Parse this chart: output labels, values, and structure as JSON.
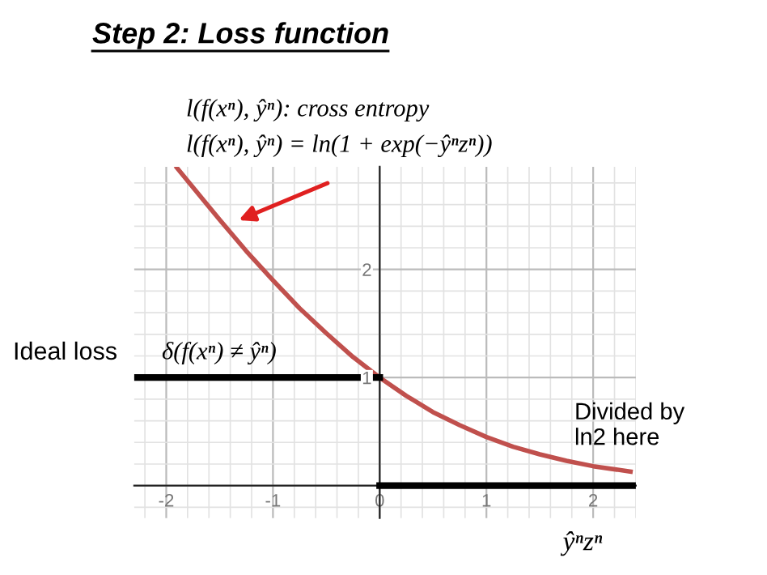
{
  "chart_data": {
    "type": "line",
    "title": "Step 2: Loss function",
    "xlabel": "ŷⁿzⁿ",
    "series": [
      {
        "color": "#c0504d",
        "x": [
          -1.9,
          -1.75,
          -1.5,
          -1.25,
          -1,
          -0.75,
          -0.5,
          -0.25,
          0,
          0.25,
          0.5,
          0.75,
          1,
          1.25,
          1.5,
          1.75,
          2,
          2.35
        ],
        "values": [
          2.94,
          2.76,
          2.46,
          2.17,
          1.9,
          1.64,
          1.41,
          1.19,
          1.0,
          0.83,
          0.68,
          0.56,
          0.45,
          0.36,
          0.29,
          0.23,
          0.18,
          0.13
        ]
      },
      {
        "color": "#000000",
        "x": [
          -2.3,
          0
        ],
        "values": [
          1,
          1
        ]
      },
      {
        "color": "#000000",
        "x": [
          0,
          2.4
        ],
        "values": [
          0,
          0
        ]
      }
    ],
    "annotations": [
      "l(f(xⁿ), ŷⁿ): cross entropy",
      "l(f(xⁿ), ŷⁿ) = ln(1 + exp(−ŷⁿzⁿ))",
      "Ideal loss",
      "δ(f(xⁿ) ≠ ŷⁿ)",
      "Divided by\nln2 here"
    ],
    "xlim": [
      -2.3,
      2.4
    ],
    "ylim": [
      -0.3,
      2.95
    ],
    "xticks": [
      -2,
      -1,
      0,
      1,
      2
    ],
    "yticks": [
      1,
      2
    ],
    "grid": true,
    "marker": "none",
    "line_style": "solid",
    "legend": false
  }
}
